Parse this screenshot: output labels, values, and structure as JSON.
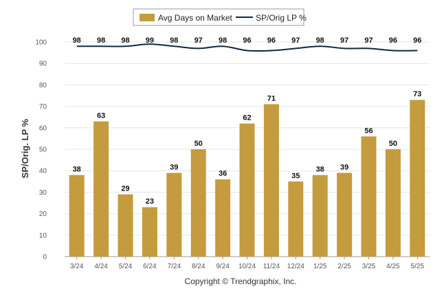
{
  "chart_data": {
    "type": "bar",
    "title": "",
    "xlabel": "",
    "ylabel": "SP/Orig. LP %",
    "ylim": [
      0,
      100
    ],
    "yticks": [
      0,
      10,
      20,
      30,
      40,
      50,
      60,
      70,
      80,
      90,
      100
    ],
    "grid": true,
    "legend_position": "top-center",
    "categories": [
      "3/24",
      "4/24",
      "5/24",
      "6/24",
      "7/24",
      "8/24",
      "9/24",
      "10/24",
      "11/24",
      "12/24",
      "1/25",
      "2/25",
      "3/25",
      "4/25",
      "5/25"
    ],
    "series": [
      {
        "name": "Avg Days on Market",
        "type": "bar",
        "color": "#C49B3F",
        "values": [
          38,
          63,
          29,
          23,
          39,
          50,
          36,
          62,
          71,
          35,
          38,
          39,
          56,
          50,
          73
        ]
      },
      {
        "name": "SP/Orig LP %",
        "type": "line",
        "color": "#0E2841",
        "values": [
          98,
          98,
          98,
          99,
          98,
          97,
          98,
          96,
          96,
          97,
          98,
          97,
          97,
          96,
          96
        ]
      }
    ]
  },
  "footer": {
    "copyright": "Copyright © Trendgraphix, Inc."
  }
}
